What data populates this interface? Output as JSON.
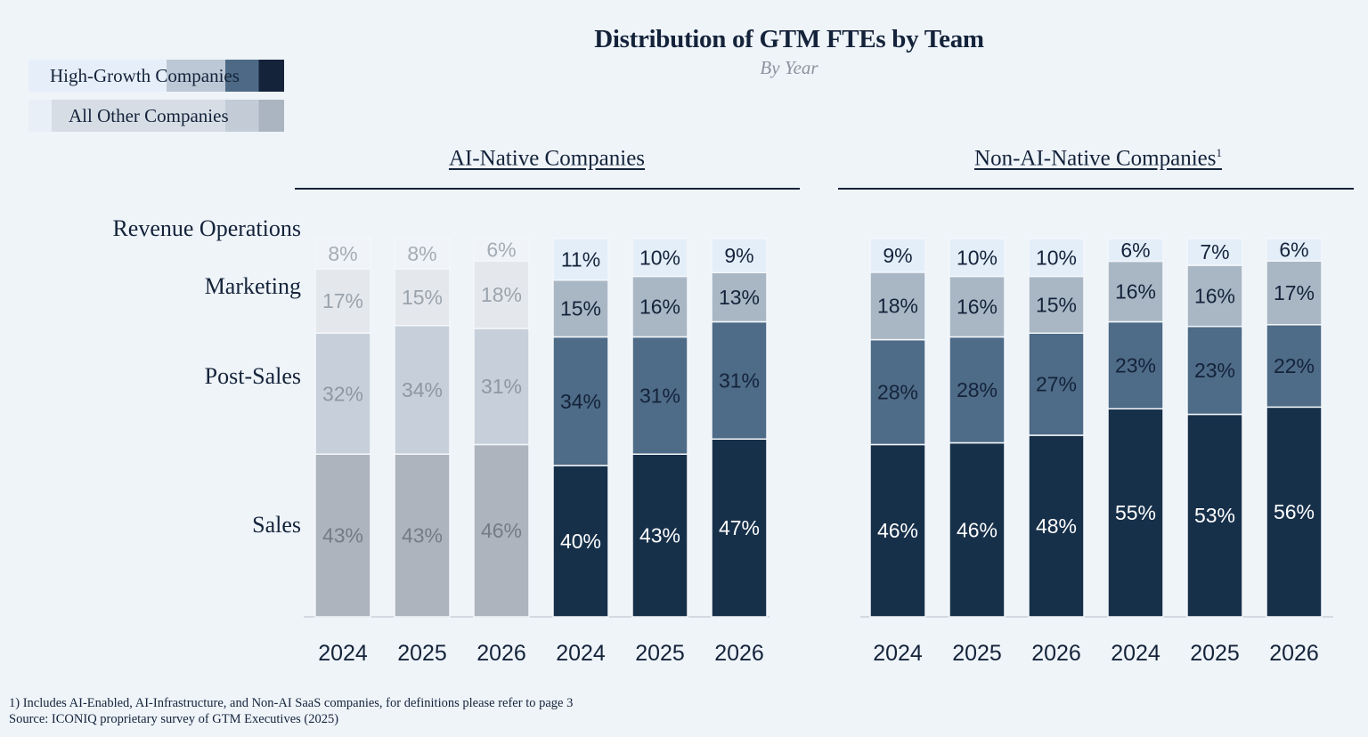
{
  "title": "Distribution of GTM FTEs by Team",
  "subtitle": "By Year",
  "legend": [
    {
      "label": "High-Growth Companies"
    },
    {
      "label": "All Other Companies"
    }
  ],
  "footnotes": {
    "note": "1) Includes AI-Enabled, AI-Infrastructure, and Non-AI SaaS companies, for definitions please refer to page 3",
    "source": "Source: ICONIQ proprietary survey of GTM Executives (2025)"
  },
  "chart_data": [
    {
      "type": "bar",
      "stacked": true,
      "panel_title": "AI-Native Companies",
      "title_superscript": "",
      "ylim": [
        0,
        100
      ],
      "grid": false,
      "group_order": [
        "All Other Companies",
        "High-Growth Companies"
      ],
      "categories": [
        "2024",
        "2025",
        "2026",
        "2024",
        "2025",
        "2026"
      ],
      "category_group": [
        "All Other Companies",
        "All Other Companies",
        "All Other Companies",
        "High-Growth Companies",
        "High-Growth Companies",
        "High-Growth Companies"
      ],
      "series": [
        {
          "name": "Sales",
          "values": [
            43,
            43,
            46,
            40,
            43,
            47
          ]
        },
        {
          "name": "Post-Sales",
          "values": [
            32,
            34,
            31,
            34,
            31,
            31
          ]
        },
        {
          "name": "Marketing",
          "values": [
            17,
            15,
            18,
            15,
            16,
            13
          ]
        },
        {
          "name": "Revenue Operations",
          "values": [
            8,
            8,
            6,
            11,
            10,
            9
          ]
        }
      ],
      "data_labels": [
        [
          "43%",
          "43%",
          "46%",
          "40%",
          "43%",
          "47%"
        ],
        [
          "32%",
          "34%",
          "31%",
          "34%",
          "31%",
          "31%"
        ],
        [
          "17%",
          "15%",
          "18%",
          "15%",
          "16%",
          "13%"
        ],
        [
          "8%",
          "8%",
          "6%",
          "11%",
          "10%",
          "9%"
        ]
      ]
    },
    {
      "type": "bar",
      "stacked": true,
      "panel_title": "Non-AI-Native Companies",
      "title_superscript": "1",
      "ylim": [
        0,
        100
      ],
      "grid": false,
      "group_order": [
        "All Other Companies",
        "High-Growth Companies"
      ],
      "categories": [
        "2024",
        "2025",
        "2026",
        "2024",
        "2025",
        "2026"
      ],
      "category_group": [
        "All Other Companies",
        "All Other Companies",
        "All Other Companies",
        "High-Growth Companies",
        "High-Growth Companies",
        "High-Growth Companies"
      ],
      "series": [
        {
          "name": "Sales",
          "values": [
            46,
            46,
            48,
            55,
            53,
            56
          ]
        },
        {
          "name": "Post-Sales",
          "values": [
            28,
            28,
            27,
            23,
            23,
            22
          ]
        },
        {
          "name": "Marketing",
          "values": [
            18,
            16,
            15,
            16,
            16,
            17
          ]
        },
        {
          "name": "Revenue Operations",
          "values": [
            9,
            10,
            10,
            6,
            7,
            6
          ]
        }
      ],
      "data_labels": [
        [
          "46%",
          "46%",
          "48%",
          "55%",
          "53%",
          "56%"
        ],
        [
          "28%",
          "28%",
          "27%",
          "23%",
          "23%",
          "22%"
        ],
        [
          "18%",
          "16%",
          "15%",
          "16%",
          "16%",
          "17%"
        ],
        [
          "9%",
          "10%",
          "10%",
          "6%",
          "7%",
          "6%"
        ]
      ]
    }
  ],
  "colors": {
    "all_other_muted": [
      "#adb4bd",
      "#c7d0da",
      "#e4e8ed",
      "#f0f3f7"
    ],
    "all_other_text": [
      "#737c87",
      "#8e98a3",
      "#9aa3ad",
      "#a4acb5"
    ],
    "dark_set": [
      "#17304a",
      "#4e6b87",
      "#a9b7c5",
      "#e3eef9"
    ],
    "dark_text": [
      "#ffffff",
      "#14233a",
      "#14233a",
      "#14233a"
    ],
    "legend_high_growth": "#14233a",
    "legend_all_other": "#aab5c1"
  }
}
